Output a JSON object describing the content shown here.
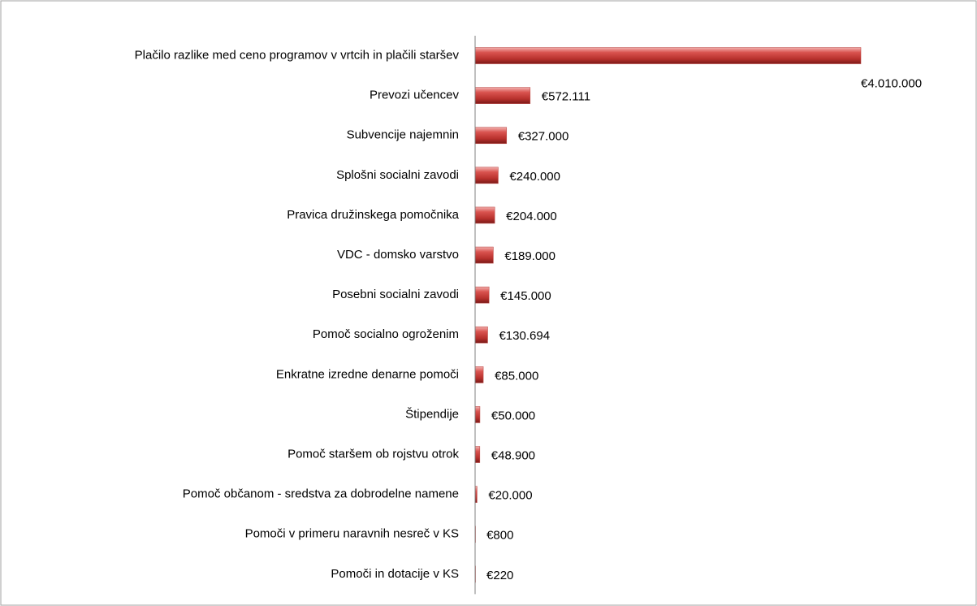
{
  "chart_data": {
    "type": "hbar",
    "categories": [
      "Plačilo razlike med ceno programov v vrtcih in plačili staršev",
      "Prevozi učencev",
      "Subvencije najemnin",
      "Splošni socialni zavodi",
      "Pravica družinskega pomočnika",
      "VDC - domsko varstvo",
      "Posebni socialni zavodi",
      "Pomoč socialno ogroženim",
      "Enkratne izredne denarne pomoči",
      "Štipendije",
      "Pomoč staršem ob rojstvu otrok",
      "Pomoč občanom - sredstva za dobrodelne namene",
      "Pomoči v primeru naravnih nesreč v KS",
      "Pomoči in dotacije v KS"
    ],
    "values": [
      4010000,
      572111,
      327000,
      240000,
      204000,
      189000,
      145000,
      130694,
      85000,
      50000,
      48900,
      20000,
      800,
      220
    ],
    "value_labels": [
      "€4.010.000",
      "€572.111",
      "€327.000",
      "€240.000",
      "€204.000",
      "€189.000",
      "€145.000",
      "€130.694",
      "€85.000",
      "€50.000",
      "€48.900",
      "€20.000",
      "€800",
      "€220"
    ],
    "color": "#c0504d"
  }
}
